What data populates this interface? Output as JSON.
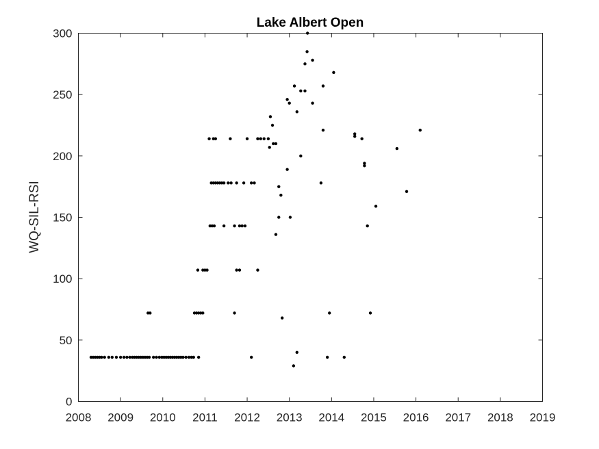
{
  "chart_data": {
    "type": "scatter",
    "title": "Lake Albert Open",
    "xlabel": "",
    "ylabel": "WQ-SIL-RSI",
    "xlim": [
      2008,
      2019
    ],
    "ylim": [
      0,
      300
    ],
    "x_ticks": [
      "2008",
      "2009",
      "2010",
      "2011",
      "2012",
      "2013",
      "2014",
      "2015",
      "2016",
      "2017",
      "2018",
      "2019"
    ],
    "y_ticks": [
      "0",
      "50",
      "100",
      "150",
      "200",
      "250",
      "300"
    ],
    "grid": false,
    "marker_color": "#000000",
    "series": [
      {
        "points": [
          [
            2008.3,
            36
          ],
          [
            2008.35,
            36
          ],
          [
            2008.4,
            36
          ],
          [
            2008.45,
            36
          ],
          [
            2008.5,
            36
          ],
          [
            2008.55,
            36
          ],
          [
            2008.62,
            36
          ],
          [
            2008.72,
            36
          ],
          [
            2008.8,
            36
          ],
          [
            2008.9,
            36
          ],
          [
            2009.0,
            36
          ],
          [
            2009.08,
            36
          ],
          [
            2009.15,
            36
          ],
          [
            2009.22,
            36
          ],
          [
            2009.28,
            36
          ],
          [
            2009.33,
            36
          ],
          [
            2009.38,
            36
          ],
          [
            2009.43,
            36
          ],
          [
            2009.48,
            36
          ],
          [
            2009.53,
            36
          ],
          [
            2009.58,
            36
          ],
          [
            2009.63,
            36
          ],
          [
            2009.68,
            36
          ],
          [
            2009.78,
            36
          ],
          [
            2009.85,
            36
          ],
          [
            2009.92,
            36
          ],
          [
            2009.98,
            36
          ],
          [
            2010.03,
            36
          ],
          [
            2010.08,
            36
          ],
          [
            2010.13,
            36
          ],
          [
            2010.18,
            36
          ],
          [
            2010.23,
            36
          ],
          [
            2010.28,
            36
          ],
          [
            2010.33,
            36
          ],
          [
            2010.38,
            36
          ],
          [
            2010.43,
            36
          ],
          [
            2010.48,
            36
          ],
          [
            2010.55,
            36
          ],
          [
            2010.62,
            36
          ],
          [
            2010.68,
            36
          ],
          [
            2010.73,
            36
          ],
          [
            2010.85,
            36
          ],
          [
            2009.65,
            72
          ],
          [
            2009.7,
            72
          ],
          [
            2010.75,
            72
          ],
          [
            2010.8,
            72
          ],
          [
            2010.85,
            72
          ],
          [
            2010.9,
            72
          ],
          [
            2010.95,
            72
          ],
          [
            2010.83,
            107
          ],
          [
            2010.95,
            107
          ],
          [
            2011.0,
            107
          ],
          [
            2011.05,
            107
          ],
          [
            2011.1,
            214
          ],
          [
            2011.2,
            214
          ],
          [
            2011.25,
            214
          ],
          [
            2011.12,
            143
          ],
          [
            2011.17,
            143
          ],
          [
            2011.22,
            143
          ],
          [
            2011.15,
            178
          ],
          [
            2011.2,
            178
          ],
          [
            2011.25,
            178
          ],
          [
            2011.3,
            178
          ],
          [
            2011.35,
            178
          ],
          [
            2011.4,
            178
          ],
          [
            2011.45,
            178
          ],
          [
            2011.55,
            178
          ],
          [
            2011.62,
            178
          ],
          [
            2011.45,
            143
          ],
          [
            2011.7,
            143
          ],
          [
            2011.82,
            143
          ],
          [
            2011.88,
            143
          ],
          [
            2011.95,
            143
          ],
          [
            2011.6,
            214
          ],
          [
            2011.75,
            178
          ],
          [
            2011.92,
            178
          ],
          [
            2012.1,
            178
          ],
          [
            2012.17,
            178
          ],
          [
            2011.75,
            107
          ],
          [
            2011.82,
            107
          ],
          [
            2011.7,
            72
          ],
          [
            2012.25,
            107
          ],
          [
            2012.0,
            214
          ],
          [
            2012.25,
            214
          ],
          [
            2012.32,
            214
          ],
          [
            2012.4,
            214
          ],
          [
            2012.5,
            214
          ],
          [
            2012.53,
            207
          ],
          [
            2012.55,
            232
          ],
          [
            2012.6,
            225
          ],
          [
            2012.62,
            210
          ],
          [
            2012.68,
            210
          ],
          [
            2012.1,
            36
          ],
          [
            2012.68,
            136
          ],
          [
            2012.75,
            175
          ],
          [
            2012.8,
            168
          ],
          [
            2012.75,
            150
          ],
          [
            2012.83,
            68
          ],
          [
            2012.95,
            189
          ],
          [
            2012.95,
            246
          ],
          [
            2013.0,
            243
          ],
          [
            2013.02,
            150
          ],
          [
            2013.1,
            29
          ],
          [
            2013.12,
            257
          ],
          [
            2013.18,
            236
          ],
          [
            2013.18,
            40
          ],
          [
            2013.27,
            200
          ],
          [
            2013.27,
            253
          ],
          [
            2013.37,
            253
          ],
          [
            2013.37,
            275
          ],
          [
            2013.42,
            285
          ],
          [
            2013.43,
            300
          ],
          [
            2013.55,
            278
          ],
          [
            2013.55,
            243
          ],
          [
            2013.75,
            178
          ],
          [
            2013.8,
            221
          ],
          [
            2013.8,
            257
          ],
          [
            2013.9,
            36
          ],
          [
            2013.95,
            72
          ],
          [
            2014.05,
            268
          ],
          [
            2014.3,
            36
          ],
          [
            2014.55,
            218
          ],
          [
            2014.55,
            216
          ],
          [
            2014.72,
            214
          ],
          [
            2014.78,
            194
          ],
          [
            2014.78,
            192
          ],
          [
            2014.85,
            143
          ],
          [
            2014.92,
            72
          ],
          [
            2015.05,
            159
          ],
          [
            2015.55,
            206
          ],
          [
            2015.78,
            171
          ],
          [
            2016.1,
            221
          ]
        ]
      }
    ]
  }
}
